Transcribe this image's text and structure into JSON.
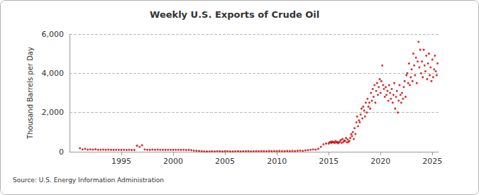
{
  "chart_data": {
    "type": "scatter",
    "title": "Weekly U.S. Exports of Crude Oil",
    "y_label": "Thousand Barrels per Day",
    "source": "Source: U.S. Energy Information Administration",
    "color": "#cc0000",
    "marker": "circle",
    "grid": true,
    "xlim": [
      1990,
      2025.6
    ],
    "xticks": [
      1995,
      2000,
      2005,
      2010,
      2015,
      2020,
      2025
    ],
    "ylim": [
      0,
      6000
    ],
    "yticks": [
      0,
      {
        "value": 2000,
        "label": "2,000"
      },
      {
        "value": 4000,
        "label": "4,000"
      },
      {
        "value": 6000,
        "label": "6,000"
      }
    ],
    "x": [
      1991.0,
      1991.25,
      1991.5,
      1991.75,
      1992.0,
      1992.25,
      1992.5,
      1992.75,
      1993.0,
      1993.25,
      1993.5,
      1993.75,
      1994.0,
      1994.25,
      1994.5,
      1994.75,
      1995.0,
      1995.25,
      1995.5,
      1995.75,
      1996.0,
      1996.25,
      1996.5,
      1996.75,
      1997.0,
      1997.25,
      1997.5,
      1997.75,
      1998.0,
      1998.25,
      1998.5,
      1998.75,
      1999.0,
      1999.25,
      1999.5,
      1999.75,
      2000.0,
      2000.25,
      2000.5,
      2000.75,
      2001.0,
      2001.25,
      2001.5,
      2001.75,
      2002.0,
      2002.25,
      2002.5,
      2002.75,
      2003.0,
      2003.25,
      2003.5,
      2003.75,
      2004.0,
      2004.25,
      2004.5,
      2004.75,
      2005.0,
      2005.25,
      2005.5,
      2005.75,
      2006.0,
      2006.25,
      2006.5,
      2006.75,
      2007.0,
      2007.25,
      2007.5,
      2007.75,
      2008.0,
      2008.25,
      2008.5,
      2008.75,
      2009.0,
      2009.25,
      2009.5,
      2009.75,
      2010.0,
      2010.25,
      2010.5,
      2010.75,
      2011.0,
      2011.25,
      2011.5,
      2011.75,
      2012.0,
      2012.25,
      2012.5,
      2012.75,
      2013.0,
      2013.25,
      2013.5,
      2013.75,
      2014.0,
      2014.25,
      2014.5,
      2014.75,
      2015.0,
      2015.08,
      2015.17,
      2015.25,
      2015.33,
      2015.42,
      2015.5,
      2015.58,
      2015.67,
      2015.75,
      2015.83,
      2015.92,
      2016.0,
      2016.08,
      2016.17,
      2016.25,
      2016.33,
      2016.42,
      2016.5,
      2016.58,
      2016.67,
      2016.75,
      2016.83,
      2016.92,
      2017.0,
      2017.08,
      2017.17,
      2017.25,
      2017.33,
      2017.42,
      2017.5,
      2017.58,
      2017.67,
      2017.75,
      2017.83,
      2017.92,
      2018.0,
      2018.08,
      2018.17,
      2018.25,
      2018.33,
      2018.42,
      2018.5,
      2018.58,
      2018.67,
      2018.75,
      2018.83,
      2018.92,
      2019.0,
      2019.08,
      2019.17,
      2019.25,
      2019.33,
      2019.42,
      2019.5,
      2019.58,
      2019.67,
      2019.75,
      2019.83,
      2019.92,
      2020.0,
      2020.08,
      2020.17,
      2020.25,
      2020.33,
      2020.42,
      2020.5,
      2020.58,
      2020.67,
      2020.75,
      2020.83,
      2020.92,
      2021.0,
      2021.08,
      2021.17,
      2021.25,
      2021.33,
      2021.42,
      2021.5,
      2021.58,
      2021.67,
      2021.75,
      2021.83,
      2021.92,
      2022.0,
      2022.08,
      2022.17,
      2022.25,
      2022.33,
      2022.42,
      2022.5,
      2022.58,
      2022.67,
      2022.75,
      2022.83,
      2022.92,
      2023.0,
      2023.08,
      2023.17,
      2023.25,
      2023.33,
      2023.42,
      2023.5,
      2023.58,
      2023.67,
      2023.75,
      2023.83,
      2023.92,
      2024.0,
      2024.08,
      2024.17,
      2024.25,
      2024.33,
      2024.42,
      2024.5,
      2024.58,
      2024.67,
      2024.75,
      2024.83,
      2024.92,
      2025.0,
      2025.08,
      2025.17,
      2025.25,
      2025.33,
      2025.42,
      2025.5
    ],
    "values": [
      180,
      120,
      150,
      110,
      120,
      110,
      130,
      100,
      100,
      110,
      100,
      105,
      100,
      95,
      100,
      100,
      95,
      100,
      90,
      100,
      90,
      95,
      310,
      250,
      330,
      120,
      100,
      95,
      110,
      100,
      105,
      100,
      100,
      95,
      100,
      100,
      95,
      100,
      100,
      95,
      100,
      90,
      95,
      80,
      60,
      50,
      40,
      30,
      20,
      15,
      20,
      25,
      20,
      25,
      30,
      20,
      30,
      25,
      20,
      15,
      25,
      30,
      20,
      25,
      25,
      30,
      20,
      25,
      30,
      25,
      35,
      30,
      25,
      40,
      30,
      35,
      30,
      40,
      35,
      30,
      40,
      30,
      45,
      35,
      50,
      60,
      45,
      70,
      80,
      100,
      120,
      110,
      150,
      250,
      380,
      420,
      420,
      480,
      500,
      450,
      520,
      480,
      500,
      450,
      550,
      470,
      500,
      430,
      480,
      520,
      600,
      450,
      650,
      500,
      580,
      550,
      700,
      480,
      620,
      500,
      550,
      700,
      900,
      800,
      1000,
      650,
      1200,
      900,
      1500,
      1800,
      1300,
      1600,
      1500,
      1900,
      2200,
      1700,
      2300,
      2100,
      1800,
      2500,
      2000,
      2700,
      2300,
      2500,
      2200,
      3000,
      2600,
      3200,
      2800,
      3400,
      2500,
      3100,
      3500,
      2900,
      3300,
      3700,
      3000,
      3600,
      4400,
      3400,
      3200,
      2800,
      3300,
      2900,
      3100,
      2600,
      3400,
      3000,
      2700,
      3200,
      2500,
      2900,
      3500,
      2200,
      2800,
      3100,
      2000,
      2600,
      3400,
      2900,
      2500,
      3000,
      2700,
      3300,
      3600,
      2800,
      3900,
      4000,
      3500,
      4500,
      3400,
      3800,
      4200,
      3600,
      5000,
      4400,
      3900,
      4800,
      3500,
      4600,
      5600,
      4300,
      5200,
      4000,
      4600,
      3800,
      5200,
      4400,
      4100,
      4900,
      3700,
      4500,
      5000,
      3900,
      4300,
      3600,
      4700,
      3800,
      4200,
      4900,
      4100,
      3900,
      4500
    ]
  }
}
